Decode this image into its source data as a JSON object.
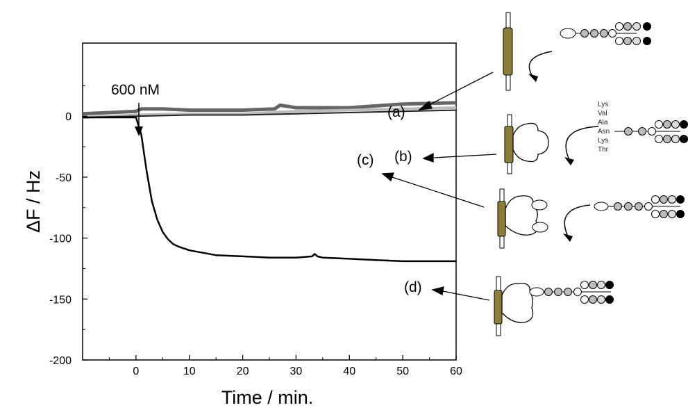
{
  "chart_data": {
    "type": "line",
    "title": "",
    "xlabel": "Time / min.",
    "ylabel": "ΔF / Hz",
    "xlim": [
      -10,
      60
    ],
    "ylim": [
      -200,
      60
    ],
    "xticks": [
      0,
      10,
      20,
      30,
      40,
      50,
      60
    ],
    "yticks": [
      0,
      -50,
      -100,
      -150,
      -200
    ],
    "grid": false,
    "series": [
      {
        "name": "(a)",
        "color": "#666666",
        "x": [
          -10,
          0,
          1,
          5,
          10,
          20,
          26,
          27,
          30,
          40,
          50,
          60
        ],
        "y": [
          2,
          4,
          6,
          6,
          5,
          5,
          6,
          9,
          7,
          7,
          10,
          11
        ]
      },
      {
        "name": "(b)",
        "color": "#bbbbbb",
        "x": [
          -10,
          0,
          10,
          20,
          30,
          40,
          50,
          60
        ],
        "y": [
          -1,
          1,
          2,
          2,
          4,
          5,
          6,
          7
        ]
      },
      {
        "name": "(c)",
        "color": "#222222",
        "x": [
          -10,
          0,
          10,
          20,
          30,
          40,
          50,
          60
        ],
        "y": [
          -1,
          0,
          1,
          1,
          2,
          3,
          4,
          5
        ]
      },
      {
        "name": "(d)",
        "color": "#000000",
        "x": [
          -10,
          0,
          1,
          2,
          3,
          4,
          5,
          6,
          7,
          8,
          10,
          15,
          20,
          25,
          30,
          33,
          33.5,
          34,
          35,
          40,
          45,
          50,
          55,
          60
        ],
        "y": [
          -1,
          -1,
          -15,
          -45,
          -70,
          -85,
          -95,
          -101,
          -105,
          -107,
          -110,
          -114,
          -115,
          -116,
          -116,
          -115,
          -113,
          -115,
          -116,
          -117,
          -118,
          -119,
          -119,
          -119
        ]
      }
    ],
    "annotations": {
      "injection": "600 nM",
      "labels": [
        "(a)",
        "(b)",
        "(c)",
        "(d)"
      ],
      "amino_acids": [
        "Lys",
        "Val",
        "Ala",
        "Asn",
        "Lys",
        "Thr"
      ]
    }
  }
}
